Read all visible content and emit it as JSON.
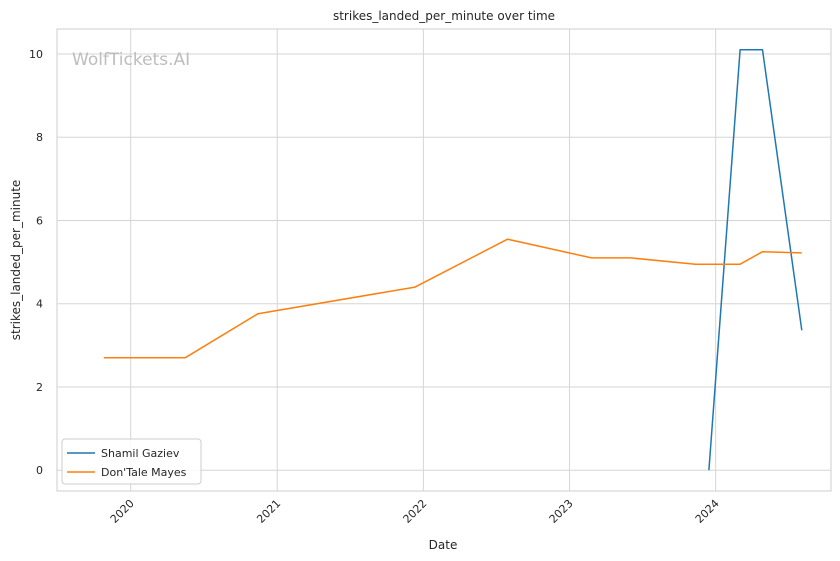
{
  "chart_data": {
    "type": "line",
    "title": "strikes_landed_per_minute over time",
    "xlabel": "Date",
    "ylabel": "strikes_landed_per_minute",
    "watermark": "WolfTickets.AI",
    "x_ticks": [
      "2020",
      "2021",
      "2022",
      "2023",
      "2024"
    ],
    "y_ticks": [
      "0",
      "2",
      "4",
      "6",
      "8",
      "10"
    ],
    "xlim": [
      "2019-07-01",
      "2024-10-15"
    ],
    "ylim": [
      -0.5,
      10.6
    ],
    "grid": true,
    "legend_position": "lower-left",
    "series": [
      {
        "name": "Shamil Gaziev",
        "color": "#1f77b4",
        "x": [
          "2023-12-15",
          "2024-03-02",
          "2024-04-27",
          "2024-08-03"
        ],
        "y": [
          0.0,
          10.1,
          10.1,
          3.36
        ]
      },
      {
        "name": "Don'Tale Mayes",
        "color": "#ff7f0e",
        "x": [
          "2019-10-26",
          "2020-05-16",
          "2020-11-14",
          "2021-12-11",
          "2022-07-30",
          "2023-02-25",
          "2023-06-03",
          "2023-11-11",
          "2024-03-02",
          "2024-04-27",
          "2024-08-03"
        ],
        "y": [
          2.7,
          2.7,
          3.76,
          4.4,
          5.55,
          5.1,
          5.1,
          4.95,
          4.95,
          5.25,
          5.22
        ]
      }
    ]
  }
}
